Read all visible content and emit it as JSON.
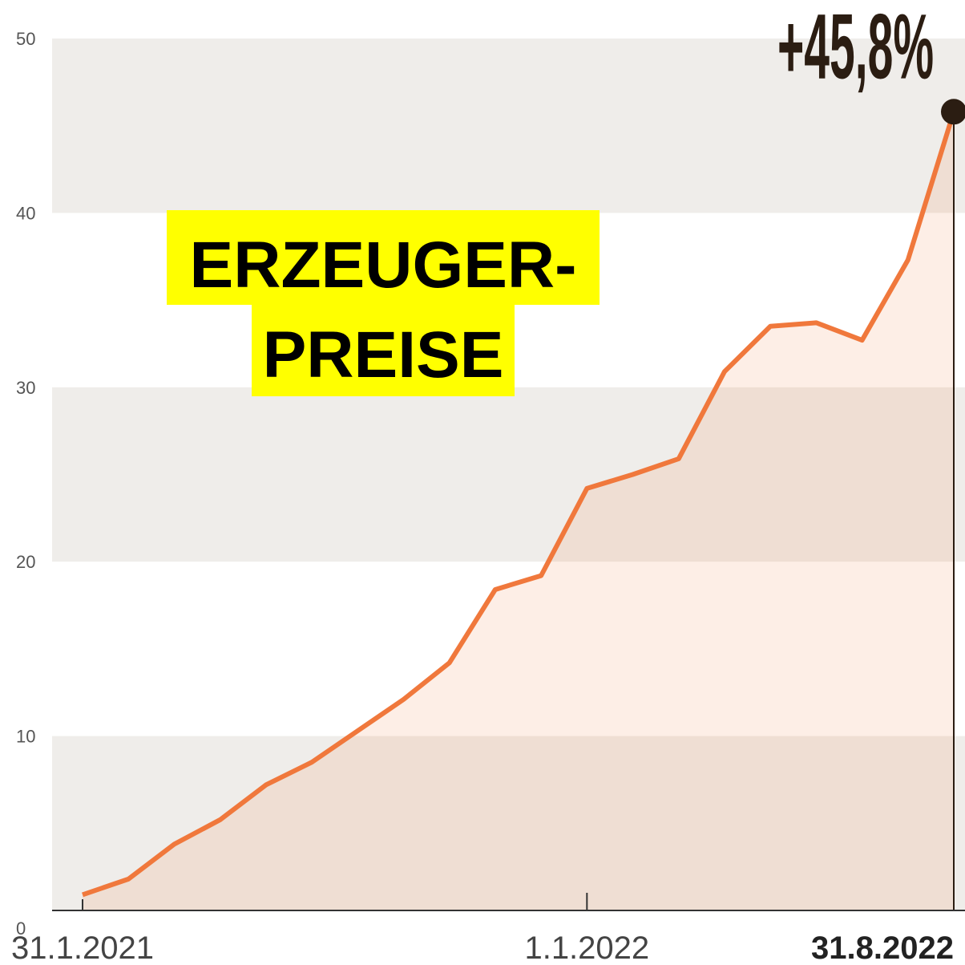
{
  "chart_data": {
    "type": "area",
    "title": [
      "ERZEUGER-",
      "PREISE"
    ],
    "categories": [
      "31.1.2021",
      null,
      null,
      null,
      null,
      null,
      null,
      null,
      null,
      null,
      null,
      "1.1.2022",
      null,
      null,
      null,
      null,
      null,
      null,
      null,
      "31.8.2022"
    ],
    "values": [
      0.9,
      1.8,
      3.8,
      5.2,
      7.2,
      8.5,
      10.3,
      12.1,
      14.2,
      18.4,
      19.2,
      24.2,
      25.0,
      25.9,
      30.9,
      33.5,
      33.7,
      32.7,
      37.3,
      45.8
    ],
    "value_labels": [
      null,
      null,
      null,
      null,
      null,
      null,
      null,
      null,
      null,
      null,
      null,
      null,
      null,
      null,
      null,
      null,
      null,
      null,
      null,
      "+45,8%"
    ],
    "color": "#f0783c",
    "ylim": [
      0,
      50
    ],
    "yticks": [
      0,
      10,
      20,
      30,
      40,
      50
    ]
  }
}
